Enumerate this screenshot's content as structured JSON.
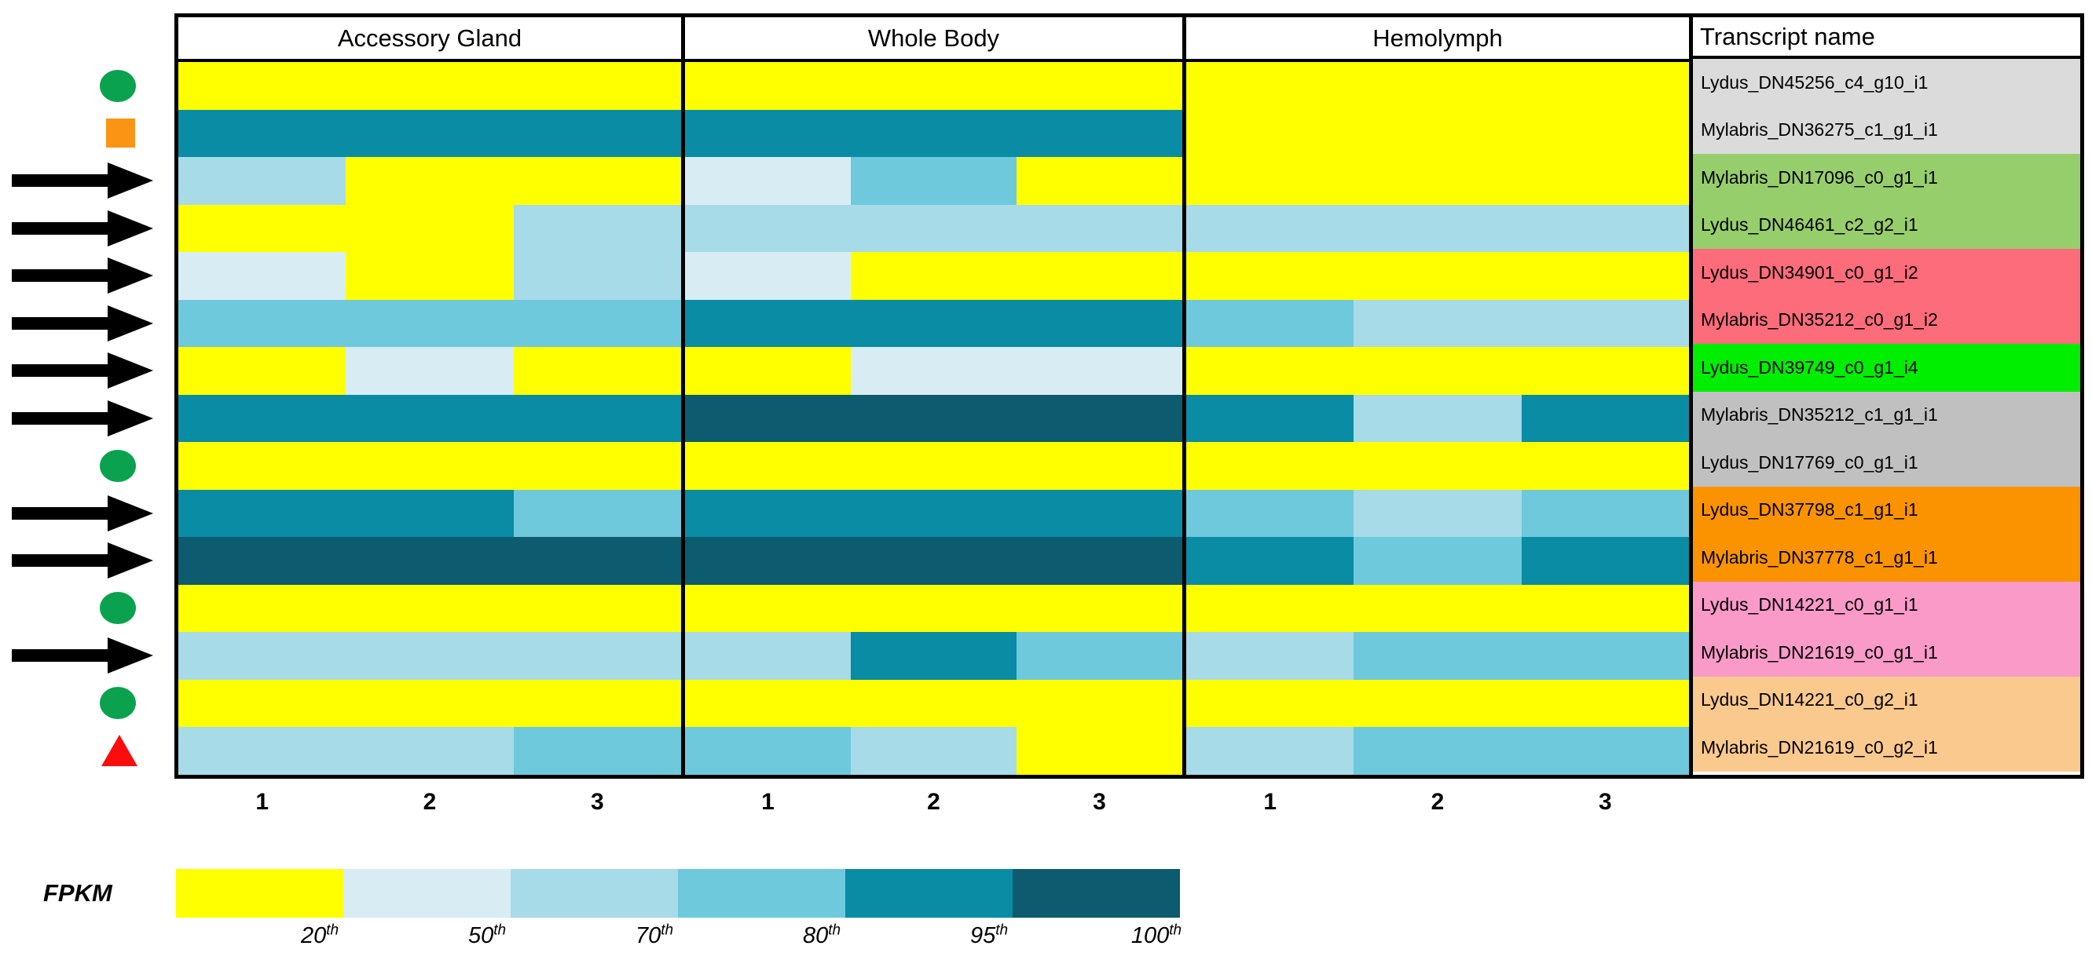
{
  "chart_data": {
    "type": "heatmap",
    "value_unit": "FPKM percentile bin",
    "panels": [
      {
        "key": "accessory_gland",
        "label": "Accessory Gland",
        "replicates": [
          "1",
          "2",
          "3"
        ]
      },
      {
        "key": "whole_body",
        "label": "Whole Body",
        "replicates": [
          "1",
          "2",
          "3"
        ]
      },
      {
        "key": "hemolymph",
        "label": "Hemolymph",
        "replicates": [
          "1",
          "2",
          "3"
        ]
      },
      {
        "key": "names",
        "label": "Transcript name"
      }
    ],
    "percentile_colors": {
      "20": "#FFFF00",
      "50": "#D8EDF3",
      "70": "#A7DBE8",
      "80": "#6EC9DC",
      "95": "#0A8CA5",
      "100": "#0C5B6E"
    },
    "markers": {
      "circle": {
        "name": "green-circle-marker",
        "color": "#0AA24E"
      },
      "square": {
        "name": "orange-square-marker",
        "color": "#FB9414"
      },
      "arrow": {
        "name": "black-arrow-marker",
        "color": "#000000"
      },
      "triangle": {
        "name": "red-triangle-marker",
        "color": "#FB0D0D"
      }
    },
    "legend": {
      "title": "FPKM",
      "bins": [
        {
          "percentile": "20",
          "suffix": "th",
          "color": "#FFFF00"
        },
        {
          "percentile": "50",
          "suffix": "th",
          "color": "#D8EDF3"
        },
        {
          "percentile": "70",
          "suffix": "th",
          "color": "#A7DBE8"
        },
        {
          "percentile": "80",
          "suffix": "th",
          "color": "#6EC9DC"
        },
        {
          "percentile": "95",
          "suffix": "th",
          "color": "#0A8CA5"
        },
        {
          "percentile": "100",
          "suffix": "th",
          "color": "#0C5B6E"
        }
      ]
    },
    "rows": [
      {
        "transcript": "Lydus_DN45256_c4_g10_i1",
        "label_bg": "#DBDBDB",
        "marker": "circle",
        "values": {
          "accessory_gland": [
            20,
            20,
            20
          ],
          "whole_body": [
            20,
            20,
            20
          ],
          "hemolymph": [
            20,
            20,
            20
          ]
        }
      },
      {
        "transcript": "Mylabris_DN36275_c1_g1_i1",
        "label_bg": "#DBDBDB",
        "marker": "square",
        "values": {
          "accessory_gland": [
            95,
            95,
            95
          ],
          "whole_body": [
            95,
            95,
            95
          ],
          "hemolymph": [
            20,
            20,
            20
          ]
        }
      },
      {
        "transcript": "Mylabris_DN17096_c0_g1_i1",
        "label_bg": "#97CE6C",
        "marker": "arrow",
        "values": {
          "accessory_gland": [
            70,
            20,
            20
          ],
          "whole_body": [
            50,
            80,
            20
          ],
          "hemolymph": [
            20,
            20,
            20
          ]
        }
      },
      {
        "transcript": "Lydus_DN46461_c2_g2_i1",
        "label_bg": "#97CE6C",
        "marker": "arrow",
        "values": {
          "accessory_gland": [
            20,
            20,
            70
          ],
          "whole_body": [
            70,
            70,
            70
          ],
          "hemolymph": [
            70,
            70,
            70
          ]
        }
      },
      {
        "transcript": "Lydus_DN34901_c0_g1_i2",
        "label_bg": "#FD6C7B",
        "marker": "arrow",
        "values": {
          "accessory_gland": [
            50,
            20,
            70
          ],
          "whole_body": [
            50,
            20,
            20
          ],
          "hemolymph": [
            20,
            20,
            20
          ]
        }
      },
      {
        "transcript": "Mylabris_DN35212_c0_g1_i2",
        "label_bg": "#FD6C7B",
        "marker": "arrow",
        "values": {
          "accessory_gland": [
            80,
            80,
            80
          ],
          "whole_body": [
            95,
            95,
            95
          ],
          "hemolymph": [
            80,
            70,
            70
          ]
        }
      },
      {
        "transcript": "Lydus_DN39749_c0_g1_i4",
        "label_bg": "#00EE00",
        "marker": "arrow",
        "values": {
          "accessory_gland": [
            20,
            50,
            20
          ],
          "whole_body": [
            20,
            50,
            50
          ],
          "hemolymph": [
            20,
            20,
            20
          ]
        }
      },
      {
        "transcript": "Mylabris_DN35212_c1_g1_i1",
        "label_bg": "#C0C0C0",
        "marker": "arrow",
        "values": {
          "accessory_gland": [
            95,
            95,
            95
          ],
          "whole_body": [
            100,
            100,
            100
          ],
          "hemolymph": [
            95,
            70,
            95
          ]
        }
      },
      {
        "transcript": "Lydus_DN17769_c0_g1_i1",
        "label_bg": "#C0C0C0",
        "marker": "circle",
        "values": {
          "accessory_gland": [
            20,
            20,
            20
          ],
          "whole_body": [
            20,
            20,
            20
          ],
          "hemolymph": [
            20,
            20,
            20
          ]
        }
      },
      {
        "transcript": "Lydus_DN37798_c1_g1_i1",
        "label_bg": "#FB9300",
        "marker": "arrow",
        "values": {
          "accessory_gland": [
            95,
            95,
            80
          ],
          "whole_body": [
            95,
            95,
            95
          ],
          "hemolymph": [
            80,
            70,
            80
          ]
        }
      },
      {
        "transcript": "Mylabris_DN37778_c1_g1_i1",
        "label_bg": "#FB9300",
        "marker": "arrow",
        "values": {
          "accessory_gland": [
            100,
            100,
            100
          ],
          "whole_body": [
            100,
            100,
            100
          ],
          "hemolymph": [
            95,
            80,
            95
          ]
        }
      },
      {
        "transcript": "Lydus_DN14221_c0_g1_i1",
        "label_bg": "#FA9AC8",
        "marker": "circle",
        "values": {
          "accessory_gland": [
            20,
            20,
            20
          ],
          "whole_body": [
            20,
            20,
            20
          ],
          "hemolymph": [
            20,
            20,
            20
          ]
        }
      },
      {
        "transcript": "Mylabris_DN21619_c0_g1_i1",
        "label_bg": "#FA9AC8",
        "marker": "arrow",
        "values": {
          "accessory_gland": [
            70,
            70,
            70
          ],
          "whole_body": [
            70,
            95,
            80
          ],
          "hemolymph": [
            70,
            80,
            80
          ]
        }
      },
      {
        "transcript": "Lydus_DN14221_c0_g2_i1",
        "label_bg": "#FAC98E",
        "marker": "circle",
        "values": {
          "accessory_gland": [
            20,
            20,
            20
          ],
          "whole_body": [
            20,
            20,
            20
          ],
          "hemolymph": [
            20,
            20,
            20
          ]
        }
      },
      {
        "transcript": "Mylabris_DN21619_c0_g2_i1",
        "label_bg": "#FAC98E",
        "marker": "triangle",
        "values": {
          "accessory_gland": [
            70,
            70,
            80
          ],
          "whole_body": [
            80,
            70,
            20
          ],
          "hemolymph": [
            70,
            80,
            80
          ]
        }
      }
    ]
  }
}
